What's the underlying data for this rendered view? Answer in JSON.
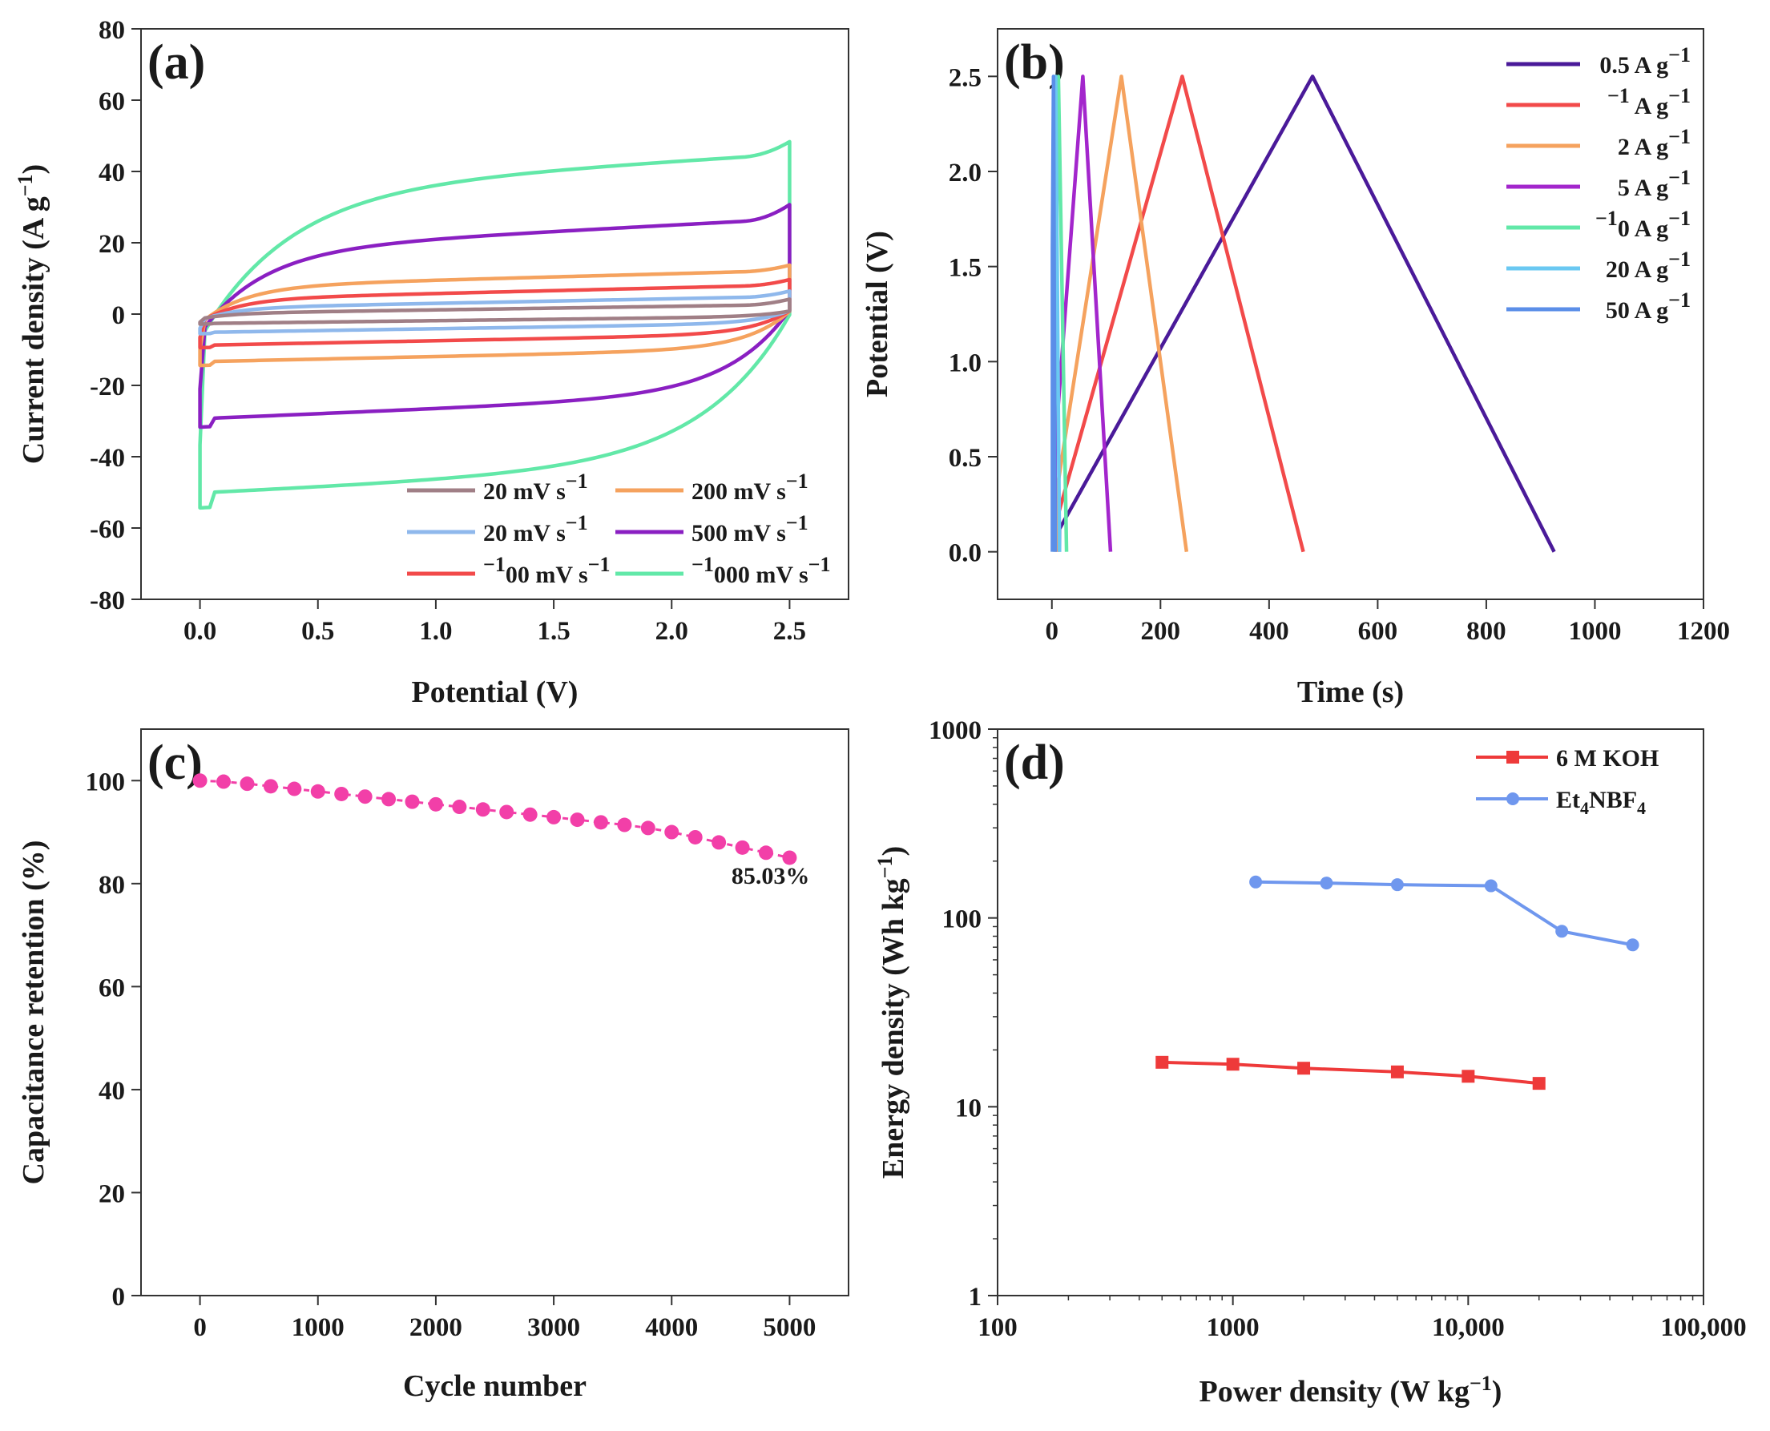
{
  "chart_data": [
    {
      "id": "a",
      "panel_label": "(a)",
      "type": "line",
      "title": "",
      "xlabel": "Potential (V)",
      "ylabel": "Current density (A g−1)",
      "xlim": [
        -0.25,
        2.75
      ],
      "ylim": [
        -80,
        80
      ],
      "xticks": [
        0.0,
        0.5,
        1.0,
        1.5,
        2.0,
        2.5
      ],
      "xtick_labels": [
        "0.0",
        "0.5",
        "1.0",
        "1.5",
        "2.0",
        "2.5"
      ],
      "yticks": [
        -80,
        -60,
        -40,
        -20,
        0,
        20,
        40,
        60,
        80
      ],
      "ytick_labels": [
        "-80",
        "-60",
        "-40",
        "-20",
        "0",
        "20",
        "40",
        "60",
        "80"
      ],
      "legend_position": "bottom-right",
      "series": [
        {
          "name": "20 mV s⁻¹",
          "color": "#a07f86",
          "amplitude": 1.5,
          "slope": 1.0,
          "tip": 3
        },
        {
          "name": "20 mV s⁻¹",
          "color": "#8fb8ec",
          "amplitude": 3.5,
          "slope": 1.3,
          "tip": 5
        },
        {
          "name": "100 mV s⁻¹",
          "color": "#f24a4a",
          "amplitude": 6.5,
          "slope": 1.6,
          "tip": 8
        },
        {
          "name": "200 mV s⁻¹",
          "color": "#f5a25e",
          "amplitude": 10.5,
          "slope": 1.8,
          "tip": 12
        },
        {
          "name": "500 mV s⁻¹",
          "color": "#8a1fc2",
          "amplitude": 23.5,
          "slope": 3.5,
          "tip": 27.5
        },
        {
          "name": "1000 mV s⁻¹",
          "color": "#62e8a8",
          "amplitude": 42,
          "slope": 4.0,
          "tip": 45.5
        }
      ]
    },
    {
      "id": "b",
      "panel_label": "(b)",
      "type": "line",
      "title": "",
      "xlabel": "Time (s)",
      "ylabel": "Potential (V)",
      "xlim": [
        -100,
        1200
      ],
      "ylim": [
        -0.25,
        2.75
      ],
      "xticks": [
        0,
        200,
        400,
        600,
        800,
        1000,
        1200
      ],
      "xtick_labels": [
        "0",
        "200",
        "400",
        "600",
        "800",
        "1000",
        "1200"
      ],
      "yticks": [
        0.0,
        0.5,
        1.0,
        1.5,
        2.0,
        2.5
      ],
      "ytick_labels": [
        "0.0",
        "0.5",
        "1.0",
        "1.5",
        "2.0",
        "2.5"
      ],
      "legend_position": "top-right",
      "series": [
        {
          "name": "0.5 A g⁻¹",
          "color": "#4a1a99",
          "x": [
            14,
            14,
            480,
            925
          ],
          "y": [
            0.0,
            0.12,
            2.5,
            0.0
          ]
        },
        {
          "name": "1 A g⁻¹",
          "color": "#f24a4a",
          "x": [
            10,
            10,
            240,
            463
          ],
          "y": [
            0.0,
            0.18,
            2.5,
            0.0
          ]
        },
        {
          "name": "2 A g⁻¹",
          "color": "#f5a25e",
          "x": [
            8,
            8,
            128,
            248
          ],
          "y": [
            0.0,
            0.3,
            2.5,
            0.0
          ]
        },
        {
          "name": "5 A g⁻¹",
          "color": "#a326cc",
          "x": [
            6,
            6,
            57,
            108
          ],
          "y": [
            0.0,
            0.55,
            2.5,
            0.0
          ]
        },
        {
          "name": "10 A g⁻¹",
          "color": "#62e8a8",
          "x": [
            5,
            5,
            12,
            27
          ],
          "y": [
            0.0,
            0.85,
            2.5,
            0.0
          ]
        },
        {
          "name": "20 A g⁻¹",
          "color": "#6ac8f2",
          "x": [
            3,
            3,
            7,
            14
          ],
          "y": [
            0.0,
            1.2,
            2.5,
            0.0
          ]
        },
        {
          "name": "50 A g⁻¹",
          "color": "#5b8ee8",
          "x": [
            1,
            1,
            3,
            6
          ],
          "y": [
            0.0,
            1.6,
            2.5,
            0.0
          ]
        }
      ]
    },
    {
      "id": "c",
      "panel_label": "(c)",
      "type": "scatter",
      "title": "",
      "xlabel": "Cycle number",
      "ylabel": "Capacitance retention (%)",
      "xlim": [
        -500,
        5500
      ],
      "ylim": [
        0,
        110
      ],
      "xticks": [
        0,
        1000,
        2000,
        3000,
        4000,
        5000
      ],
      "xtick_labels": [
        "0",
        "1000",
        "2000",
        "3000",
        "4000",
        "5000"
      ],
      "yticks": [
        0,
        20,
        40,
        60,
        80,
        100
      ],
      "ytick_labels": [
        "0",
        "20",
        "40",
        "60",
        "80",
        "100"
      ],
      "annotation": "85.03%",
      "series": [
        {
          "name": "retention",
          "color": "#f23fa8",
          "x": [
            0,
            200,
            400,
            600,
            800,
            1000,
            1200,
            1400,
            1600,
            1800,
            2000,
            2200,
            2400,
            2600,
            2800,
            3000,
            3200,
            3400,
            3600,
            3800,
            4000,
            4200,
            4400,
            4600,
            4800,
            5000
          ],
          "y": [
            100.0,
            99.8,
            99.4,
            98.9,
            98.4,
            97.9,
            97.4,
            96.9,
            96.4,
            95.9,
            95.4,
            94.9,
            94.4,
            93.9,
            93.4,
            92.9,
            92.4,
            91.9,
            91.4,
            90.8,
            90.0,
            89.0,
            88.0,
            87.0,
            86.0,
            85.03
          ]
        }
      ]
    },
    {
      "id": "d",
      "panel_label": "(d)",
      "type": "line",
      "title": "",
      "xlabel": "Power density (W kg⁻¹)",
      "ylabel": "Energy density (Wh kg⁻¹)",
      "xscale": "log",
      "yscale": "log",
      "xlim": [
        100,
        100000
      ],
      "ylim": [
        1,
        1000
      ],
      "xticks": [
        100,
        1000,
        10000,
        100000
      ],
      "xtick_labels": [
        "100",
        "1000",
        "10,000",
        "100,000"
      ],
      "yticks": [
        1,
        10,
        100,
        1000
      ],
      "ytick_labels": [
        "1",
        "10",
        "100",
        "1000"
      ],
      "legend_position": "top-right",
      "series": [
        {
          "name": "6 M KOH",
          "color": "#ee3a3a",
          "marker": "square",
          "x": [
            500,
            1000,
            2000,
            5000,
            10000,
            20000
          ],
          "y": [
            17.2,
            16.8,
            16.0,
            15.3,
            14.5,
            13.3
          ]
        },
        {
          "name": "Et₄NBF₄",
          "color": "#6f97ee",
          "marker": "circle",
          "x": [
            1250,
            2500,
            5000,
            12500,
            25000,
            50000
          ],
          "y": [
            155,
            153,
            150,
            148,
            85,
            72
          ]
        }
      ]
    }
  ]
}
